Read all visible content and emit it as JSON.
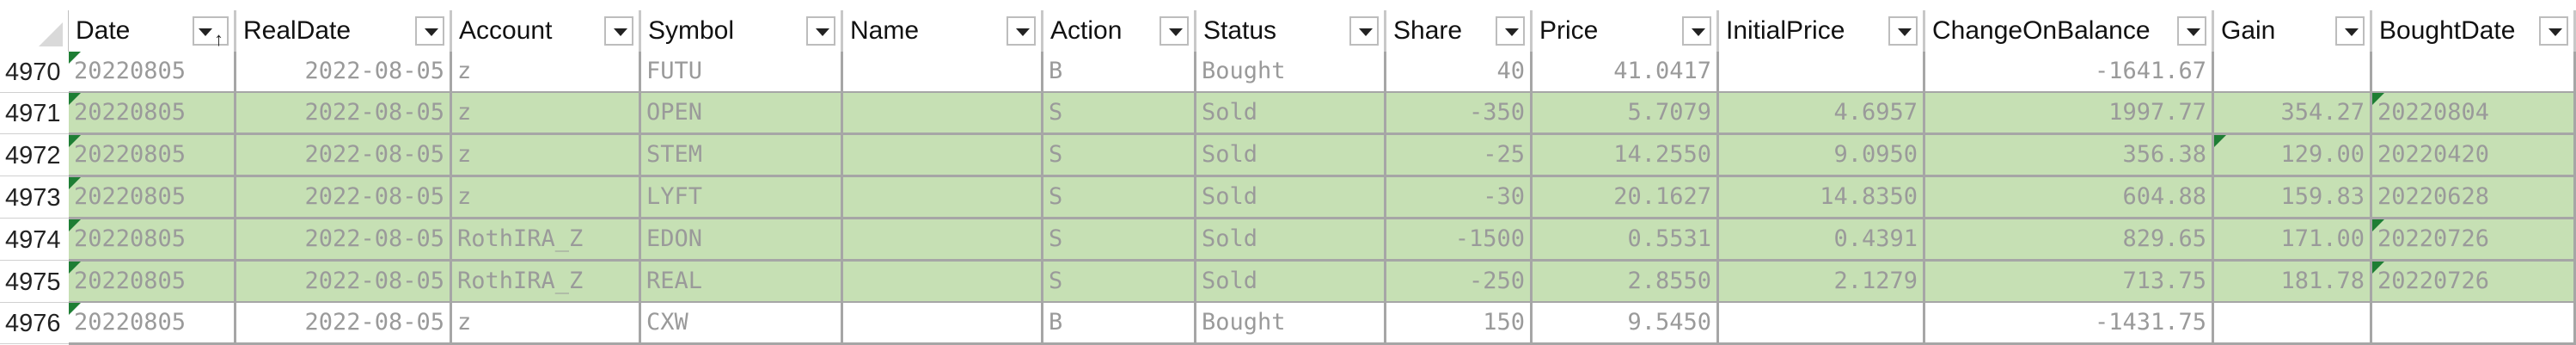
{
  "colors": {
    "highlight": "#c6e0b4",
    "normal": "#ffffff",
    "error_indicator": "#1e7e34"
  },
  "columns": [
    {
      "key": "Date",
      "label": "Date",
      "sorted": true
    },
    {
      "key": "RealDate",
      "label": "RealDate"
    },
    {
      "key": "Account",
      "label": "Account"
    },
    {
      "key": "Symbol",
      "label": "Symbol"
    },
    {
      "key": "Name",
      "label": "Name"
    },
    {
      "key": "Action",
      "label": "Action"
    },
    {
      "key": "Status",
      "label": "Status"
    },
    {
      "key": "Share",
      "label": "Share"
    },
    {
      "key": "Price",
      "label": "Price"
    },
    {
      "key": "InitialPrice",
      "label": "InitialPrice"
    },
    {
      "key": "ChangeOnBalance",
      "label": "ChangeOnBalance"
    },
    {
      "key": "Gain",
      "label": "Gain"
    },
    {
      "key": "BoughtDate",
      "label": "BoughtDate"
    }
  ],
  "rows": [
    {
      "num": "4970",
      "highlight": false,
      "cells": [
        "20220805",
        "2022-08-05",
        "z",
        "FUTU",
        "",
        "B",
        "Bought",
        "40",
        "41.0417",
        "",
        "-1641.67",
        "",
        ""
      ]
    },
    {
      "num": "4971",
      "highlight": true,
      "cells": [
        "20220805",
        "2022-08-05",
        "z",
        "OPEN",
        "",
        "S",
        "Sold",
        "-350",
        "5.7079",
        "4.6957",
        "1997.77",
        "354.27",
        "20220804"
      ]
    },
    {
      "num": "4972",
      "highlight": true,
      "cells": [
        "20220805",
        "2022-08-05",
        "z",
        "STEM",
        "",
        "S",
        "Sold",
        "-25",
        "14.2550",
        "9.0950",
        "356.38",
        "129.00",
        "20220420"
      ]
    },
    {
      "num": "4973",
      "highlight": true,
      "cells": [
        "20220805",
        "2022-08-05",
        "z",
        "LYFT",
        "",
        "S",
        "Sold",
        "-30",
        "20.1627",
        "14.8350",
        "604.88",
        "159.83",
        "20220628"
      ]
    },
    {
      "num": "4974",
      "highlight": true,
      "cells": [
        "20220805",
        "2022-08-05",
        "RothIRA_Z",
        "EDON",
        "",
        "S",
        "Sold",
        "-1500",
        "0.5531",
        "0.4391",
        "829.65",
        "171.00",
        "20220726"
      ]
    },
    {
      "num": "4975",
      "highlight": true,
      "cells": [
        "20220805",
        "2022-08-05",
        "RothIRA_Z",
        "REAL",
        "",
        "S",
        "Sold",
        "-250",
        "2.8550",
        "2.1279",
        "713.75",
        "181.78",
        "20220726"
      ]
    },
    {
      "num": "4976",
      "highlight": false,
      "cells": [
        "20220805",
        "2022-08-05",
        "z",
        "CXW",
        "",
        "B",
        "Bought",
        "150",
        "9.5450",
        "",
        "-1431.75",
        "",
        ""
      ]
    }
  ]
}
